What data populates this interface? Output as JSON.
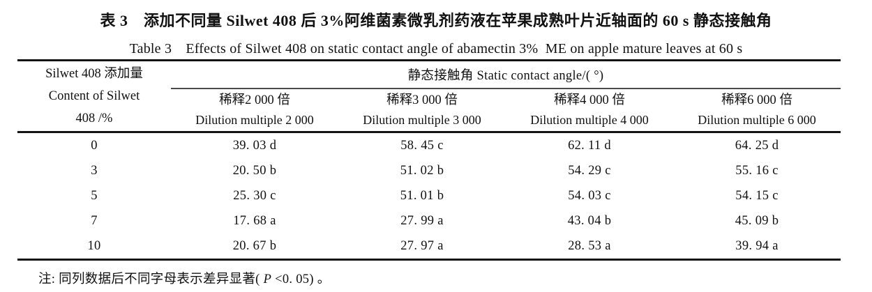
{
  "titles": {
    "zh": "表 3　添加不同量 Silwet 408 后 3%阿维菌素微乳剂药液在苹果成熟叶片近轴面的 60 s 静态接触角",
    "en": "Table 3　Effects of Silwet 408 on static contact angle of abamectin 3%  ME on apple mature leaves at 60 s"
  },
  "table": {
    "stub": [
      "Silwet 408 添加量",
      "Content of Silwet",
      "408 /%"
    ],
    "span_header": "静态接触角 Static contact angle/( °)",
    "columns": [
      {
        "zh": "稀释2 000 倍",
        "en": "Dilution multiple 2 000"
      },
      {
        "zh": "稀释3 000 倍",
        "en": "Dilution multiple 3 000"
      },
      {
        "zh": "稀释4 000 倍",
        "en": "Dilution multiple 4 000"
      },
      {
        "zh": "稀释6 000 倍",
        "en": "Dilution multiple 6 000"
      }
    ],
    "rows": [
      {
        "label": "0",
        "values": [
          "39. 03 d",
          "58. 45 c",
          "62. 11 d",
          "64. 25 d"
        ]
      },
      {
        "label": "3",
        "values": [
          "20. 50 b",
          "51. 02 b",
          "54. 29 c",
          "55. 16 c"
        ]
      },
      {
        "label": "5",
        "values": [
          "25. 30 c",
          "51. 01 b",
          "54. 03 c",
          "54. 15 c"
        ]
      },
      {
        "label": "7",
        "values": [
          "17. 68 a",
          "27. 99 a",
          "43. 04 b",
          "45. 09 b"
        ]
      },
      {
        "label": "10",
        "values": [
          "20. 67 b",
          "27. 97 a",
          "28. 53 a",
          "39. 94 a"
        ]
      }
    ]
  },
  "footnote": {
    "prefix": "注: 同列数据后不同字母表示差异显著( ",
    "p": "P",
    "suffix": " <0. 05) 。"
  },
  "chart_data": {
    "type": "table",
    "title": "表3 添加不同量Silwet 408后3%阿维菌素微乳剂药液在苹果成熟叶片近轴面的60 s静态接触角 / Table 3 Effects of Silwet 408 on static contact angle of abamectin 3% ME on apple mature leaves at 60 s",
    "xlabel": "Silwet 408 添加量 Content of Silwet 408 /%",
    "ylabel": "静态接触角 Static contact angle/(°)",
    "categories": [
      "0",
      "3",
      "5",
      "7",
      "10"
    ],
    "series": [
      {
        "name": "稀释2 000 倍 Dilution multiple 2 000",
        "values": [
          39.03,
          20.5,
          25.3,
          17.68,
          20.67
        ],
        "sig_letters": [
          "d",
          "b",
          "c",
          "a",
          "b"
        ]
      },
      {
        "name": "稀释3 000 倍 Dilution multiple 3 000",
        "values": [
          58.45,
          51.02,
          51.01,
          27.99,
          27.97
        ],
        "sig_letters": [
          "c",
          "b",
          "b",
          "a",
          "a"
        ]
      },
      {
        "name": "稀释4 000 倍 Dilution multiple 4 000",
        "values": [
          62.11,
          54.29,
          54.03,
          43.04,
          28.53
        ],
        "sig_letters": [
          "d",
          "c",
          "c",
          "b",
          "a"
        ]
      },
      {
        "name": "稀释6 000 倍 Dilution multiple 6 000",
        "values": [
          64.25,
          55.16,
          54.15,
          45.09,
          39.94
        ],
        "sig_letters": [
          "d",
          "c",
          "c",
          "b",
          "a"
        ]
      }
    ],
    "note": "注: 同列数据后不同字母表示差异显著(P<0.05)。"
  }
}
